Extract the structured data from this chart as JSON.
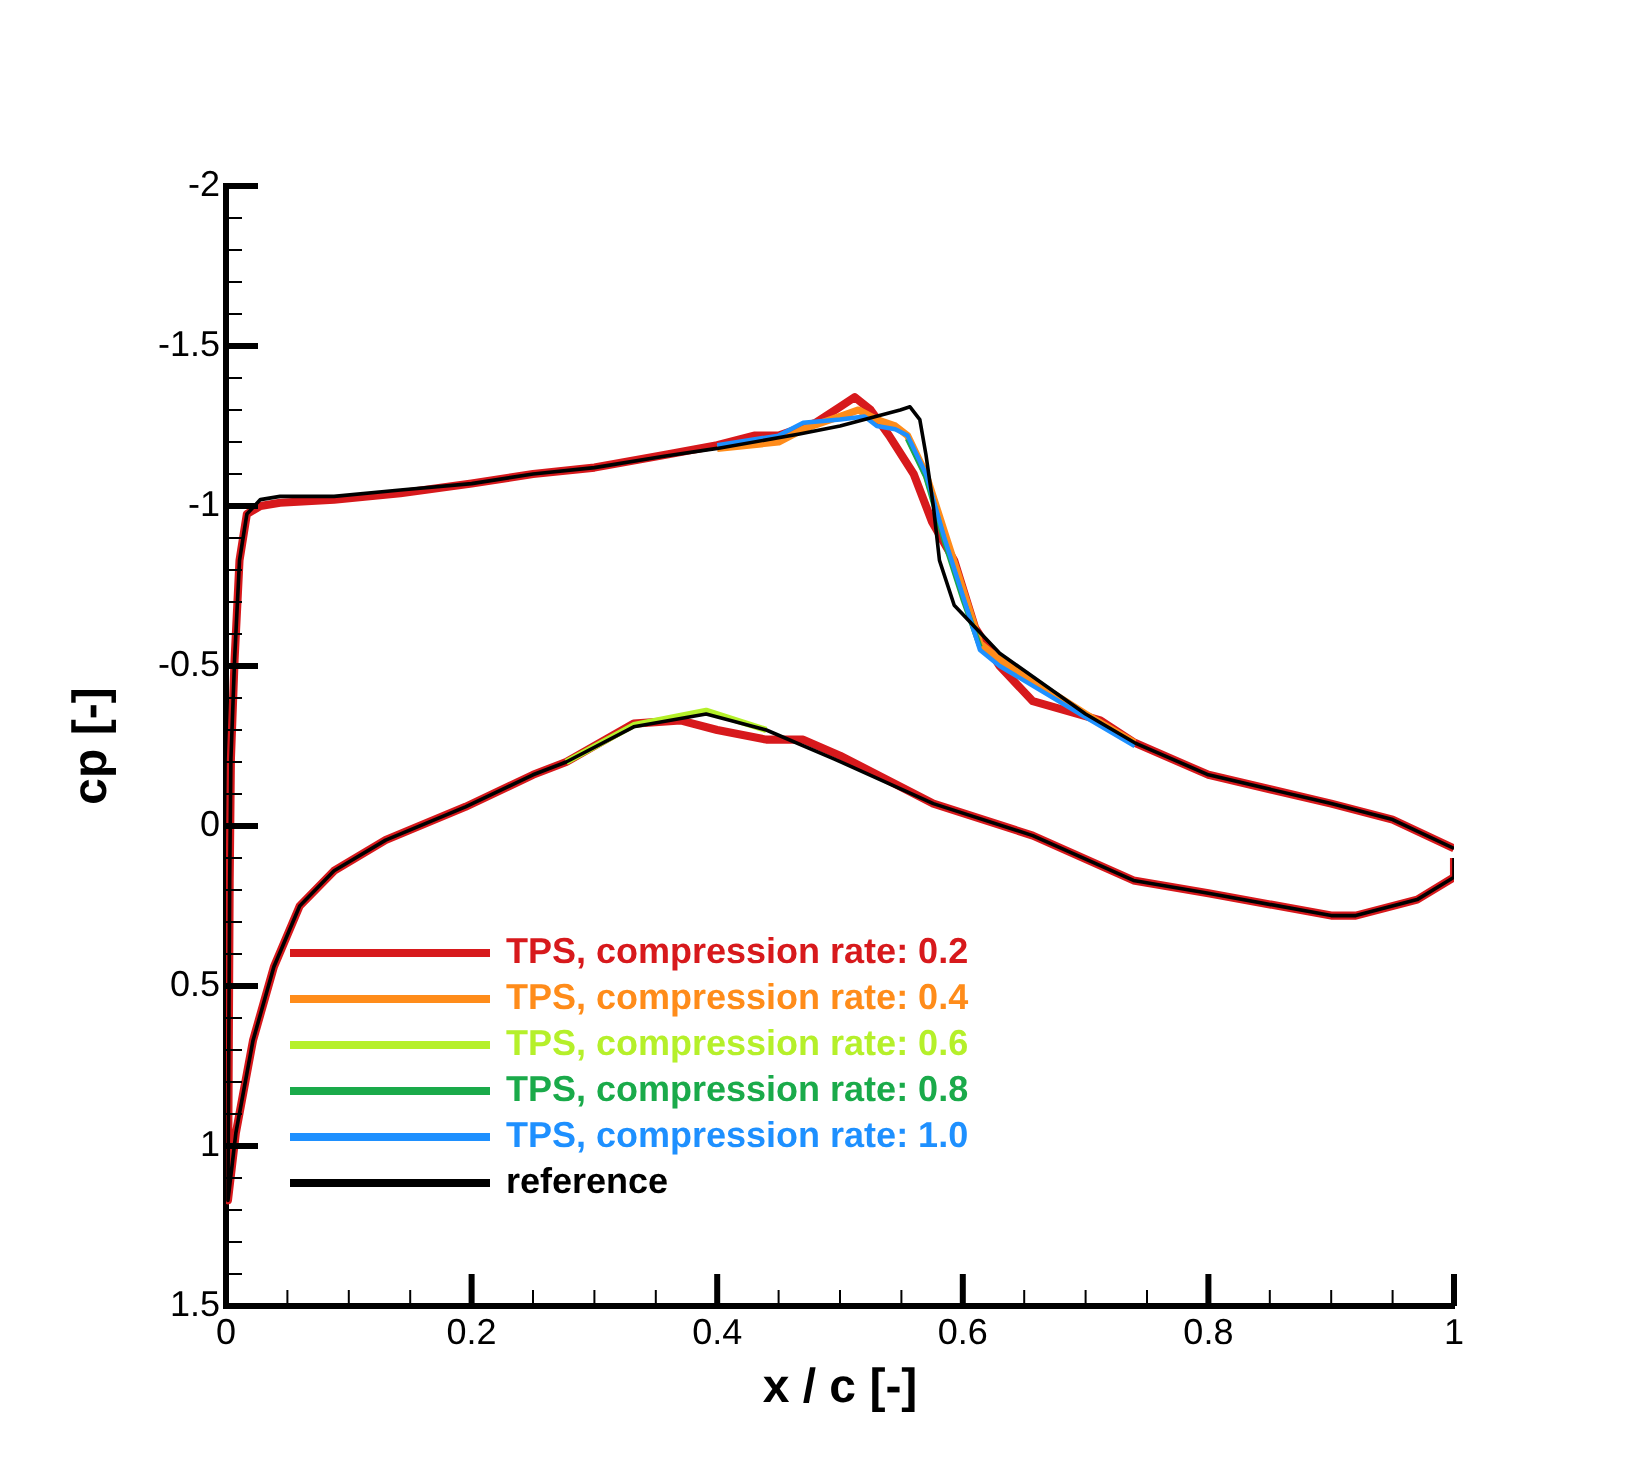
{
  "chart_data": {
    "type": "line",
    "xlabel": "x / c [-]",
    "ylabel": "cp [-]",
    "legend": "bottom left",
    "marker": "none",
    "line_style": "solid",
    "grid": false,
    "xlim": [
      0,
      1
    ],
    "ylim": [
      1.5,
      -2
    ],
    "xticks": [
      0,
      {
        "value": 0.05,
        "label": null
      },
      {
        "value": 0.1,
        "label": null
      },
      {
        "value": 0.15,
        "label": null
      },
      0.2,
      {
        "value": 0.25,
        "label": null
      },
      {
        "value": 0.3,
        "label": null
      },
      {
        "value": 0.35,
        "label": null
      },
      0.4,
      {
        "value": 0.45,
        "label": null
      },
      {
        "value": 0.5,
        "label": null
      },
      {
        "value": 0.55,
        "label": null
      },
      0.6,
      {
        "value": 0.65,
        "label": null
      },
      {
        "value": 0.7,
        "label": null
      },
      {
        "value": 0.75,
        "label": null
      },
      0.8,
      {
        "value": 0.85,
        "label": null
      },
      {
        "value": 0.9,
        "label": null
      },
      {
        "value": 0.95,
        "label": null
      },
      1
    ],
    "yticks": [
      -2,
      {
        "value": -1.9,
        "label": null
      },
      {
        "value": -1.8,
        "label": null
      },
      {
        "value": -1.7,
        "label": null
      },
      {
        "value": -1.6,
        "label": null
      },
      -1.5,
      {
        "value": -1.4,
        "label": null
      },
      {
        "value": -1.3,
        "label": null
      },
      {
        "value": -1.2,
        "label": null
      },
      {
        "value": -1.1,
        "label": null
      },
      -1,
      {
        "value": -0.9,
        "label": null
      },
      {
        "value": -0.8,
        "label": null
      },
      {
        "value": -0.7,
        "label": null
      },
      {
        "value": -0.6,
        "label": null
      },
      -0.5,
      {
        "value": -0.4,
        "label": null
      },
      {
        "value": -0.3,
        "label": null
      },
      {
        "value": -0.2,
        "label": null
      },
      {
        "value": -0.1,
        "label": null
      },
      0,
      {
        "value": 0.1,
        "label": null
      },
      {
        "value": 0.2,
        "label": null
      },
      {
        "value": 0.3,
        "label": null
      },
      {
        "value": 0.4,
        "label": null
      },
      0.5,
      {
        "value": 0.6,
        "label": null
      },
      {
        "value": 0.7,
        "label": null
      },
      {
        "value": 0.8,
        "label": null
      },
      {
        "value": 0.9,
        "label": null
      },
      1,
      {
        "value": 1.1,
        "label": null
      },
      {
        "value": 1.2,
        "label": null
      },
      {
        "value": 1.3,
        "label": null
      },
      {
        "value": 1.4,
        "label": null
      },
      1.5
    ],
    "series": [
      {
        "name": "TPS, compression rate: 0.2",
        "color": "#d7191c",
        "x": [
          1.0,
          0.95,
          0.9,
          0.8,
          0.74,
          0.712,
          0.657,
          0.63,
          0.61,
          0.593,
          0.575,
          0.56,
          0.54,
          0.525,
          0.512,
          0.5,
          0.48,
          0.45,
          0.43,
          0.4,
          0.358,
          0.3,
          0.25,
          0.2,
          0.142,
          0.088,
          0.044,
          0.028,
          0.017,
          0.011,
          0.007,
          0.004,
          0.003,
          0.0016,
          0.008,
          0.022,
          0.039,
          0.06,
          0.088,
          0.13,
          0.195,
          0.25,
          0.277,
          0.332,
          0.37,
          0.4,
          0.44,
          0.47,
          0.5,
          0.576,
          0.657,
          0.739,
          0.8,
          0.9,
          0.92,
          0.97,
          1.0,
          1.0
        ],
        "values": [
          0.07,
          -0.02,
          -0.07,
          -0.16,
          -0.26,
          -0.33,
          -0.39,
          -0.5,
          -0.62,
          -0.83,
          -0.95,
          -1.1,
          -1.22,
          -1.3,
          -1.34,
          -1.31,
          -1.26,
          -1.22,
          -1.22,
          -1.19,
          -1.16,
          -1.12,
          -1.1,
          -1.07,
          -1.04,
          -1.02,
          -1.01,
          -1.0,
          -0.975,
          -0.83,
          -0.52,
          -0.21,
          0.17,
          1.17,
          0.96,
          0.67,
          0.44,
          0.25,
          0.14,
          0.044,
          -0.06,
          -0.16,
          -0.2,
          -0.32,
          -0.33,
          -0.3,
          -0.27,
          -0.27,
          -0.22,
          -0.07,
          0.03,
          0.17,
          0.21,
          0.28,
          0.28,
          0.23,
          0.16,
          0.1
        ]
      },
      {
        "name": "TPS, compression rate: 0.4",
        "color": "#ff8c1a",
        "x": [
          0.74,
          0.7,
          0.63,
          0.614,
          0.6,
          0.585,
          0.57,
          0.555,
          0.545,
          0.53,
          0.515,
          0.5,
          0.47,
          0.45,
          0.4
        ],
        "values": [
          -0.26,
          -0.35,
          -0.52,
          -0.57,
          -0.74,
          -0.92,
          -1.1,
          -1.22,
          -1.25,
          -1.27,
          -1.3,
          -1.28,
          -1.24,
          -1.2,
          -1.18
        ]
      },
      {
        "name": "TPS, compression rate: 0.6",
        "color": "#b5f02a",
        "x": [
          0.277,
          0.332,
          0.391,
          0.44
        ],
        "values": [
          -0.2,
          -0.315,
          -0.36,
          -0.3
        ]
      },
      {
        "name": "TPS, compression rate: 0.8",
        "color": "#1aaa4a",
        "x": [
          0.614,
          0.6,
          0.585,
          0.57,
          0.555
        ],
        "values": [
          -0.56,
          -0.71,
          -0.89,
          -1.09,
          -1.21
        ]
      },
      {
        "name": "TPS, compression rate: 1.0",
        "color": "#1e90ff",
        "x": [
          0.74,
          0.7,
          0.63,
          0.614,
          0.6,
          0.585,
          0.57,
          0.555,
          0.545,
          0.53,
          0.52,
          0.5,
          0.47,
          0.45,
          0.4
        ],
        "values": [
          -0.25,
          -0.34,
          -0.5,
          -0.55,
          -0.72,
          -0.9,
          -1.1,
          -1.22,
          -1.24,
          -1.25,
          -1.28,
          -1.27,
          -1.26,
          -1.22,
          -1.19
        ]
      },
      {
        "name": "reference",
        "color": "#000000",
        "x": [
          1.0,
          0.95,
          0.9,
          0.8,
          0.74,
          0.7,
          0.63,
          0.593,
          0.581,
          0.576,
          0.57,
          0.565,
          0.557,
          0.549,
          0.5,
          0.467,
          0.4,
          0.358,
          0.3,
          0.25,
          0.2,
          0.142,
          0.088,
          0.044,
          0.028,
          0.017,
          0.011,
          0.007,
          0.004,
          0.003,
          0.0016,
          0.008,
          0.022,
          0.039,
          0.06,
          0.088,
          0.13,
          0.195,
          0.25,
          0.277,
          0.332,
          0.391,
          0.44,
          0.495,
          0.576,
          0.657,
          0.739,
          0.8,
          0.9,
          0.92,
          0.97,
          1.0,
          1.0
        ],
        "values": [
          0.07,
          -0.02,
          -0.07,
          -0.16,
          -0.26,
          -0.35,
          -0.54,
          -0.69,
          -0.83,
          -1.0,
          -1.16,
          -1.27,
          -1.31,
          -1.3,
          -1.25,
          -1.225,
          -1.18,
          -1.156,
          -1.12,
          -1.1,
          -1.07,
          -1.05,
          -1.03,
          -1.03,
          -1.02,
          -0.975,
          -0.83,
          -0.52,
          -0.21,
          0.17,
          1.17,
          0.96,
          0.67,
          0.44,
          0.25,
          0.14,
          0.044,
          -0.06,
          -0.16,
          -0.2,
          -0.31,
          -0.35,
          -0.3,
          -0.21,
          -0.07,
          0.03,
          0.17,
          0.21,
          0.28,
          0.28,
          0.23,
          0.16,
          0.1
        ]
      }
    ]
  }
}
